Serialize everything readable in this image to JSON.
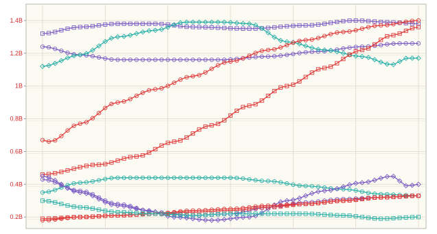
{
  "chart_data": {
    "type": "line",
    "title": "",
    "xlabel": "",
    "ylabel": "",
    "ylim": [
      0.13,
      1.5
    ],
    "xlim": [
      0,
      100
    ],
    "grid": true,
    "y_ticks": [
      {
        "value": 0.2,
        "label": "0.2B"
      },
      {
        "value": 0.4,
        "label": "0.4B"
      },
      {
        "value": 0.6,
        "label": "0.6B"
      },
      {
        "value": 0.8,
        "label": "0.8B"
      },
      {
        "value": 1.0,
        "label": "1B"
      },
      {
        "value": 1.2,
        "label": "1.2B"
      },
      {
        "value": 1.4,
        "label": "1.4B"
      }
    ],
    "x_grid": [
      0,
      16.7,
      33.3,
      50,
      66.7,
      83.3,
      100
    ],
    "series": [
      {
        "color": "#7a5cc4",
        "marker": "square",
        "values": [
          [
            0,
            1.32
          ],
          [
            10,
            1.36
          ],
          [
            20,
            1.38
          ],
          [
            30,
            1.38
          ],
          [
            40,
            1.36
          ],
          [
            55,
            1.35
          ],
          [
            70,
            1.37
          ],
          [
            83,
            1.4
          ],
          [
            92,
            1.39
          ],
          [
            100,
            1.38
          ]
        ]
      },
      {
        "color": "#7a5cc4",
        "marker": "circle",
        "values": [
          [
            0,
            1.24
          ],
          [
            10,
            1.19
          ],
          [
            20,
            1.16
          ],
          [
            33,
            1.16
          ],
          [
            47,
            1.16
          ],
          [
            60,
            1.18
          ],
          [
            73,
            1.21
          ],
          [
            85,
            1.24
          ],
          [
            95,
            1.26
          ],
          [
            100,
            1.26
          ]
        ]
      },
      {
        "color": "#2ab0a8",
        "marker": "diamond",
        "values": [
          [
            0,
            1.12
          ],
          [
            10,
            1.19
          ],
          [
            20,
            1.3
          ],
          [
            30,
            1.34
          ],
          [
            38,
            1.39
          ],
          [
            48,
            1.39
          ],
          [
            55,
            1.38
          ],
          [
            65,
            1.27
          ],
          [
            75,
            1.22
          ],
          [
            85,
            1.18
          ],
          [
            93,
            1.13
          ],
          [
            97,
            1.17
          ],
          [
            100,
            1.17
          ]
        ]
      },
      {
        "color": "#e03a3a",
        "marker": "circle",
        "values": [
          [
            0,
            0.67
          ],
          [
            2,
            0.66
          ],
          [
            10,
            0.77
          ],
          [
            20,
            0.9
          ],
          [
            30,
            0.98
          ],
          [
            40,
            1.06
          ],
          [
            50,
            1.15
          ],
          [
            60,
            1.22
          ],
          [
            70,
            1.28
          ],
          [
            80,
            1.33
          ],
          [
            90,
            1.37
          ],
          [
            100,
            1.4
          ]
        ]
      },
      {
        "color": "#e03a3a",
        "marker": "square",
        "values": [
          [
            0,
            0.46
          ],
          [
            15,
            0.52
          ],
          [
            25,
            0.57
          ],
          [
            35,
            0.66
          ],
          [
            45,
            0.76
          ],
          [
            55,
            0.88
          ],
          [
            65,
            1.0
          ],
          [
            75,
            1.11
          ],
          [
            85,
            1.22
          ],
          [
            93,
            1.31
          ],
          [
            100,
            1.36
          ]
        ]
      },
      {
        "color": "#2ab0a8",
        "marker": "circle",
        "values": [
          [
            0,
            0.35
          ],
          [
            10,
            0.41
          ],
          [
            20,
            0.44
          ],
          [
            30,
            0.44
          ],
          [
            40,
            0.44
          ],
          [
            50,
            0.44
          ],
          [
            60,
            0.42
          ],
          [
            70,
            0.39
          ],
          [
            80,
            0.37
          ],
          [
            90,
            0.34
          ],
          [
            100,
            0.33
          ]
        ]
      },
      {
        "color": "#7a5cc4",
        "marker": "diamond",
        "values": [
          [
            0,
            0.45
          ],
          [
            10,
            0.35
          ],
          [
            20,
            0.27
          ],
          [
            28,
            0.24
          ],
          [
            35,
            0.2
          ],
          [
            45,
            0.18
          ],
          [
            55,
            0.2
          ],
          [
            65,
            0.3
          ],
          [
            75,
            0.36
          ],
          [
            85,
            0.41
          ],
          [
            93,
            0.45
          ],
          [
            97,
            0.39
          ],
          [
            100,
            0.4
          ]
        ]
      },
      {
        "color": "#7a5cc4",
        "marker": "circle",
        "values": [
          [
            0,
            0.43
          ],
          [
            10,
            0.36
          ],
          [
            20,
            0.28
          ],
          [
            30,
            0.23
          ],
          [
            40,
            0.21
          ],
          [
            50,
            0.22
          ],
          [
            60,
            0.26
          ],
          [
            70,
            0.29
          ],
          [
            80,
            0.31
          ],
          [
            90,
            0.32
          ],
          [
            100,
            0.33
          ]
        ]
      },
      {
        "color": "#e03a3a",
        "marker": "circle",
        "values": [
          [
            0,
            0.18
          ],
          [
            10,
            0.2
          ],
          [
            20,
            0.21
          ],
          [
            30,
            0.22
          ],
          [
            40,
            0.24
          ],
          [
            50,
            0.25
          ],
          [
            60,
            0.27
          ],
          [
            70,
            0.28
          ],
          [
            80,
            0.3
          ],
          [
            90,
            0.32
          ],
          [
            100,
            0.33
          ]
        ]
      },
      {
        "color": "#e03a3a",
        "marker": "square",
        "values": [
          [
            0,
            0.19
          ],
          [
            10,
            0.2
          ],
          [
            20,
            0.21
          ],
          [
            30,
            0.22
          ],
          [
            40,
            0.23
          ],
          [
            50,
            0.24
          ],
          [
            60,
            0.26
          ],
          [
            70,
            0.28
          ],
          [
            80,
            0.3
          ],
          [
            90,
            0.32
          ],
          [
            100,
            0.33
          ]
        ]
      },
      {
        "color": "#2ab0a8",
        "marker": "square",
        "values": [
          [
            0,
            0.3
          ],
          [
            10,
            0.26
          ],
          [
            20,
            0.23
          ],
          [
            30,
            0.22
          ],
          [
            40,
            0.21
          ],
          [
            50,
            0.22
          ],
          [
            60,
            0.22
          ],
          [
            70,
            0.22
          ],
          [
            80,
            0.21
          ],
          [
            90,
            0.19
          ],
          [
            100,
            0.2
          ]
        ]
      }
    ]
  }
}
